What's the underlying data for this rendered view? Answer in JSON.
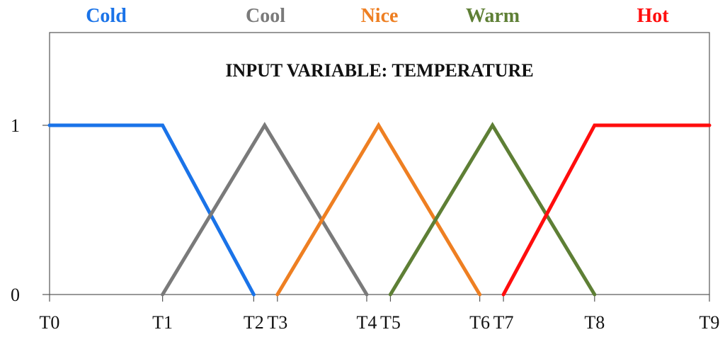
{
  "chart_data": {
    "type": "line",
    "title": "INPUT VARIABLE: TEMPERATURE",
    "xlabel": "",
    "ylabel": "",
    "ylim": [
      0,
      1
    ],
    "y_ticks": [
      "0",
      "1"
    ],
    "x_tick_labels": [
      "T0",
      "T1",
      "T2",
      "T3",
      "T4",
      "T5",
      "T6",
      "T7",
      "T8",
      "T9"
    ],
    "x_tick_values": [
      0,
      1.24,
      2.24,
      2.5,
      3.48,
      3.74,
      4.72,
      4.98,
      5.98,
      7.24
    ],
    "xlim": [
      0,
      7.24
    ],
    "grid": false,
    "legend_placement": "top",
    "series": [
      {
        "name": "Cold",
        "color": "#1a73e8",
        "x": [
          0,
          1.24,
          2.24
        ],
        "y": [
          1,
          1,
          0
        ]
      },
      {
        "name": "Cool",
        "color": "#7a7a7a",
        "x": [
          1.24,
          2.36,
          3.48
        ],
        "y": [
          0,
          1,
          0
        ]
      },
      {
        "name": "Nice",
        "color": "#ee7f22",
        "x": [
          2.5,
          3.61,
          4.72
        ],
        "y": [
          0,
          1,
          0
        ]
      },
      {
        "name": "Warm",
        "color": "#5e7f35",
        "x": [
          3.74,
          4.86,
          5.98
        ],
        "y": [
          0,
          1,
          0
        ]
      },
      {
        "name": "Hot",
        "color": "#ff0d0d",
        "x": [
          4.98,
          5.98,
          7.24
        ],
        "y": [
          0,
          1,
          1
        ]
      }
    ]
  }
}
